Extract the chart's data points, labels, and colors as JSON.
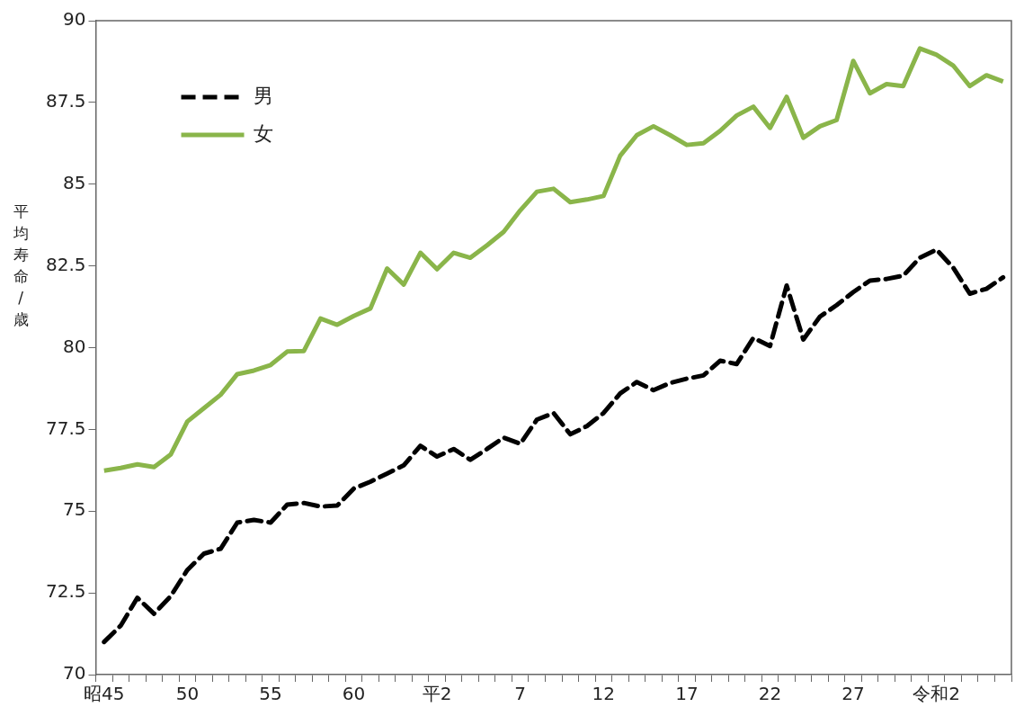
{
  "chart_data": {
    "type": "line",
    "ylabel": "平均寿命/歳",
    "categories": [
      "昭45",
      null,
      null,
      null,
      null,
      "50",
      null,
      null,
      null,
      null,
      "55",
      null,
      null,
      null,
      null,
      "60",
      null,
      null,
      null,
      null,
      "平2",
      null,
      null,
      null,
      null,
      "7",
      null,
      null,
      null,
      null,
      "12",
      null,
      null,
      null,
      null,
      "17",
      null,
      null,
      null,
      null,
      "22",
      null,
      null,
      null,
      null,
      "27",
      null,
      null,
      null,
      null,
      "令和2",
      null,
      null,
      null,
      null
    ],
    "series": [
      {
        "name": "男",
        "color": "#000000",
        "line_style": "dashed",
        "values": [
          71.0,
          71.5,
          72.35,
          71.86,
          72.4,
          73.2,
          73.7,
          73.85,
          74.65,
          74.73,
          74.65,
          75.2,
          75.25,
          75.14,
          75.17,
          75.69,
          75.9,
          76.15,
          76.4,
          77.0,
          76.67,
          76.9,
          76.57,
          76.9,
          77.25,
          77.06,
          77.8,
          78.0,
          77.35,
          77.6,
          78.0,
          78.6,
          78.95,
          78.7,
          78.92,
          79.05,
          79.15,
          79.6,
          79.5,
          80.3,
          80.05,
          81.9,
          80.25,
          80.95,
          81.3,
          81.7,
          82.05,
          82.1,
          82.2,
          82.75,
          83.0,
          82.45,
          81.65,
          81.8,
          82.15
        ]
      },
      {
        "name": "女",
        "color": "#8ab54a",
        "line_style": "solid",
        "values": [
          76.24,
          76.32,
          76.43,
          76.35,
          76.73,
          77.74,
          78.15,
          78.56,
          79.19,
          79.3,
          79.47,
          79.88,
          79.9,
          80.89,
          80.7,
          80.97,
          81.2,
          82.42,
          81.93,
          82.9,
          82.4,
          82.9,
          82.75,
          83.13,
          83.54,
          84.2,
          84.77,
          84.86,
          84.45,
          84.53,
          84.64,
          85.87,
          86.5,
          86.77,
          86.5,
          86.2,
          86.25,
          86.63,
          87.1,
          87.37,
          86.72,
          87.67,
          86.42,
          86.77,
          86.96,
          88.77,
          87.78,
          88.06,
          88.0,
          89.15,
          88.96,
          88.63,
          88.0,
          88.33,
          88.14
        ]
      }
    ],
    "ylim": [
      70,
      90
    ],
    "yticks": [
      70,
      72.5,
      75,
      77.5,
      80,
      82.5,
      85,
      87.5,
      90
    ],
    "grid": false,
    "legend": "top left",
    "marker": "none"
  }
}
